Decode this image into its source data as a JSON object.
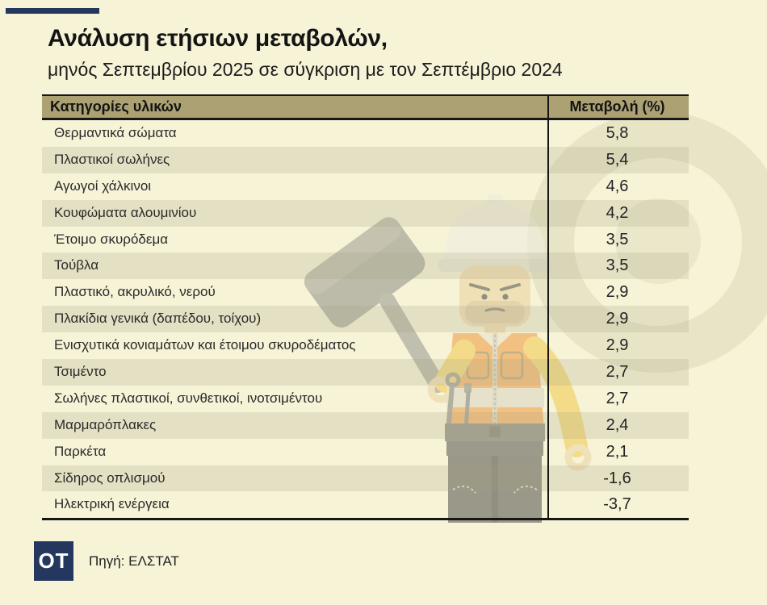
{
  "page": {
    "background": "#f6f3d7",
    "accent_color": "#24375e"
  },
  "header": {
    "title": "Ανάλυση ετήσιων μεταβολών,",
    "subtitle": "μηνός Σεπτεμβρίου 2025 σε σύγκριση με τον Σεπτέμβριο 2024"
  },
  "table": {
    "header_bg": "#aba172",
    "columns": [
      {
        "label": "Κατηγορίες υλικών"
      },
      {
        "label": "Μεταβολή (%)"
      }
    ],
    "rows": [
      {
        "label": "Θερμαντικά σώματα",
        "value": "5,8"
      },
      {
        "label": "Πλαστικοί σωλήνες",
        "value": "5,4"
      },
      {
        "label": "Αγωγοί χάλκινοι",
        "value": "4,6"
      },
      {
        "label": "Κουφώματα αλουμινίου",
        "value": "4,2"
      },
      {
        "label": "Έτοιμο σκυρόδεμα",
        "value": "3,5"
      },
      {
        "label": "Τούβλα",
        "value": "3,5"
      },
      {
        "label": "Πλαστικό, ακρυλικό, νερού",
        "value": "2,9"
      },
      {
        "label": "Πλακίδια γενικά (δαπέδου, τοίχου)",
        "value": "2,9"
      },
      {
        "label": "Ενισχυτικά κονιαμάτων και έτοιμου σκυροδέματος",
        "value": "2,9"
      },
      {
        "label": "Τσιμέντο",
        "value": "2,7"
      },
      {
        "label": "Σωλήνες πλαστικοί, συνθετικοί, ινοτσιμέντου",
        "value": "2,7"
      },
      {
        "label": "Μαρμαρόπλακες",
        "value": "2,4"
      },
      {
        "label": "Παρκέτα",
        "value": "2,1"
      },
      {
        "label": "Σίδηρος οπλισμού",
        "value": "-1,6"
      },
      {
        "label": "Ηλεκτρική ενέργεια",
        "value": "-3,7"
      }
    ]
  },
  "footer": {
    "logo_text": "OT",
    "source": "Πηγή: ΕΛΣΤΑΤ"
  },
  "decor": {
    "figure": "lego-construction-worker-with-mallet",
    "watermark": "concentric-circles"
  },
  "chart_data": {
    "type": "table",
    "title": "Ανάλυση ετήσιων μεταβολών, μηνός Σεπτεμβρίου 2025 σε σύγκριση με τον Σεπτέμβριο 2024",
    "columns": [
      "Κατηγορίες υλικών",
      "Μεταβολή (%)"
    ],
    "categories": [
      "Θερμαντικά σώματα",
      "Πλαστικοί σωλήνες",
      "Αγωγοί χάλκινοι",
      "Κουφώματα αλουμινίου",
      "Έτοιμο σκυρόδεμα",
      "Τούβλα",
      "Πλαστικό, ακρυλικό, νερού",
      "Πλακίδια γενικά (δαπέδου, τοίχου)",
      "Ενισχυτικά κονιαμάτων και έτοιμου σκυροδέματος",
      "Τσιμέντο",
      "Σωλήνες πλαστικοί, συνθετικοί, ινοτσιμέντου",
      "Μαρμαρόπλακες",
      "Παρκέτα",
      "Σίδηρος οπλισμού",
      "Ηλεκτρική ενέργεια"
    ],
    "values": [
      5.8,
      5.4,
      4.6,
      4.2,
      3.5,
      3.5,
      2.9,
      2.9,
      2.9,
      2.7,
      2.7,
      2.4,
      2.1,
      -1.6,
      -3.7
    ],
    "source": "ΕΛΣΤΑΤ"
  }
}
